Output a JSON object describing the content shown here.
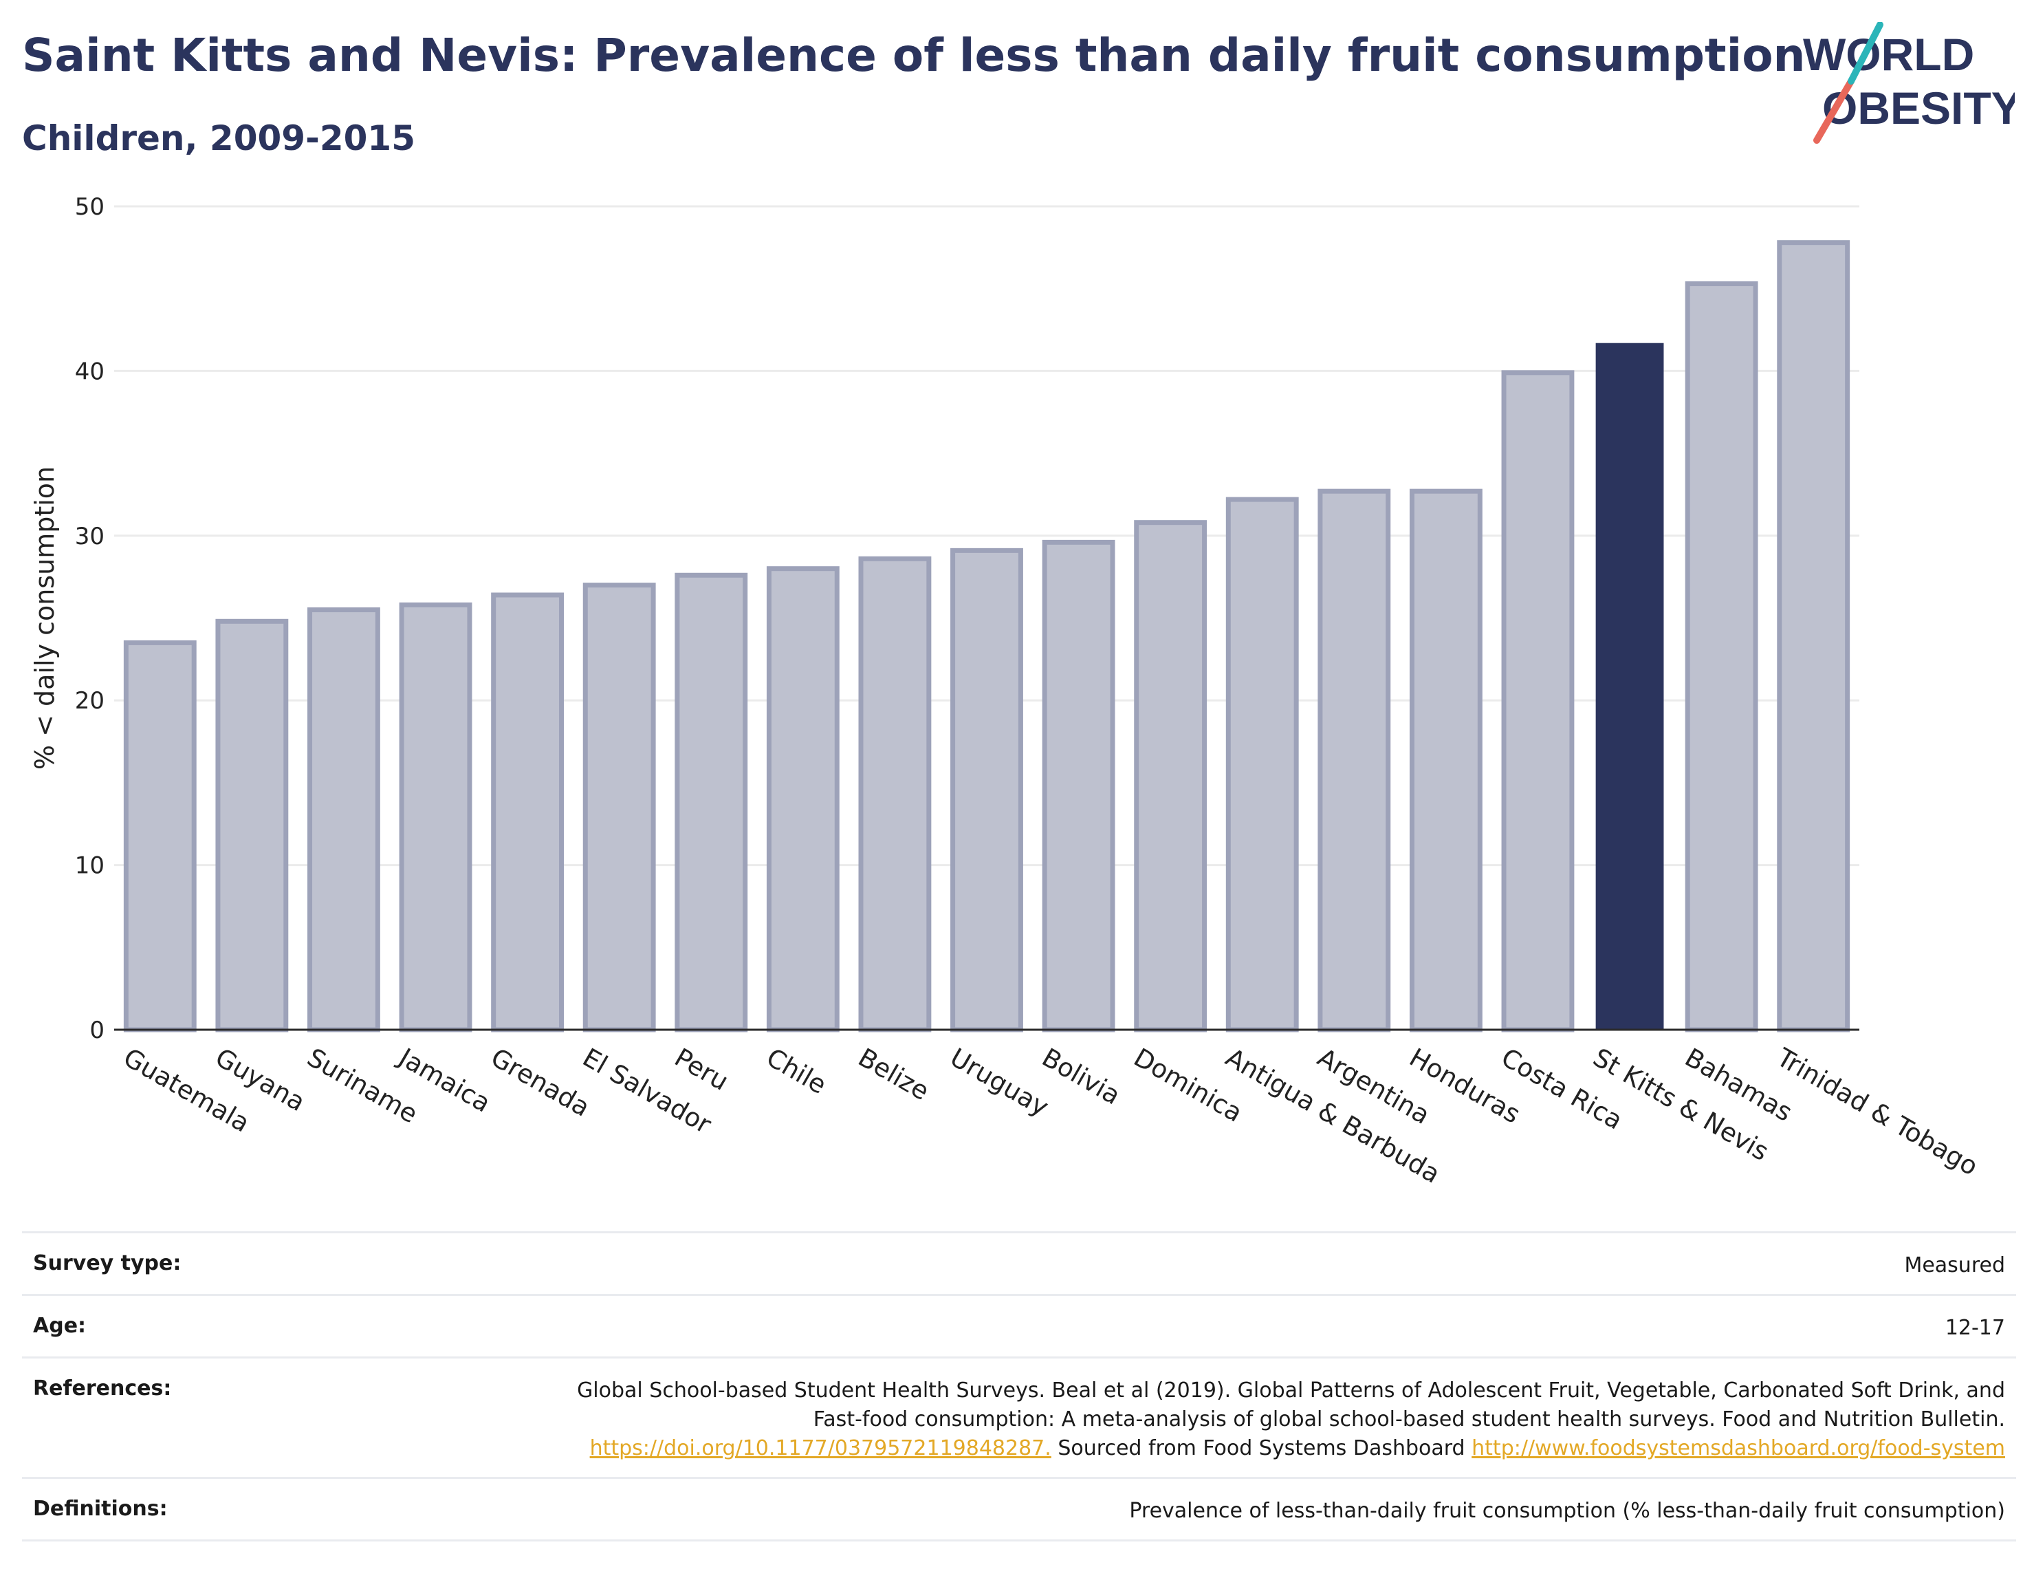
{
  "header": {
    "title": "Saint Kitts and Nevis: Prevalence of less than daily fruit consumption",
    "subtitle": "Children, 2009-2015"
  },
  "logo": {
    "line1": "WORLD",
    "line2": "OBESITY",
    "colors": {
      "text": "#2b345d",
      "slash_teal": "#2bb5b9",
      "slash_coral": "#e8675a"
    }
  },
  "chart_data": {
    "type": "bar",
    "ylabel": "% < daily consumption",
    "xlabel": "",
    "ylim": [
      0,
      50
    ],
    "yticks": [
      0,
      10,
      20,
      30,
      40,
      50
    ],
    "grid": true,
    "categories": [
      "Guatemala",
      "Guyana",
      "Suriname",
      "Jamaica",
      "Grenada",
      "El Salvador",
      "Peru",
      "Chile",
      "Belize",
      "Uruguay",
      "Bolivia",
      "Dominica",
      "Antigua & Barbuda",
      "Argentina",
      "Honduras",
      "Costa Rica",
      "St Kitts & Nevis",
      "Bahamas",
      "Trinidad & Tobago"
    ],
    "values": [
      23.5,
      24.8,
      25.5,
      25.8,
      26.4,
      27.0,
      27.6,
      28.0,
      28.6,
      29.1,
      29.6,
      30.8,
      32.2,
      32.7,
      32.7,
      39.9,
      41.7,
      45.3,
      47.8
    ],
    "highlight": "St Kitts & Nevis",
    "colors": {
      "bar": "#bec1cf",
      "bar_border": "#9da2b9",
      "highlight": "#2b345d",
      "grid": "#ebebeb",
      "axis": "#2a2a2a"
    }
  },
  "meta": {
    "survey_type": {
      "label": "Survey type:",
      "value": "Measured"
    },
    "age": {
      "label": "Age:",
      "value": "12-17"
    },
    "references": {
      "label": "References:",
      "text1": "Global School-based Student Health Surveys. Beal et al (2019). Global Patterns of Adolescent Fruit, Vegetable, Carbonated Soft Drink, and Fast-food consumption: A meta-analysis of global school-based student health surveys. Food and Nutrition Bulletin.",
      "link1": "https://doi.org/10.1177/0379572119848287.",
      "text2": "Sourced from Food Systems Dashboard",
      "link2": "http://www.foodsystemsdashboard.org/food-system"
    },
    "definitions": {
      "label": "Definitions:",
      "value": "Prevalence of less-than-daily fruit consumption (% less-than-daily fruit consumption)"
    }
  }
}
